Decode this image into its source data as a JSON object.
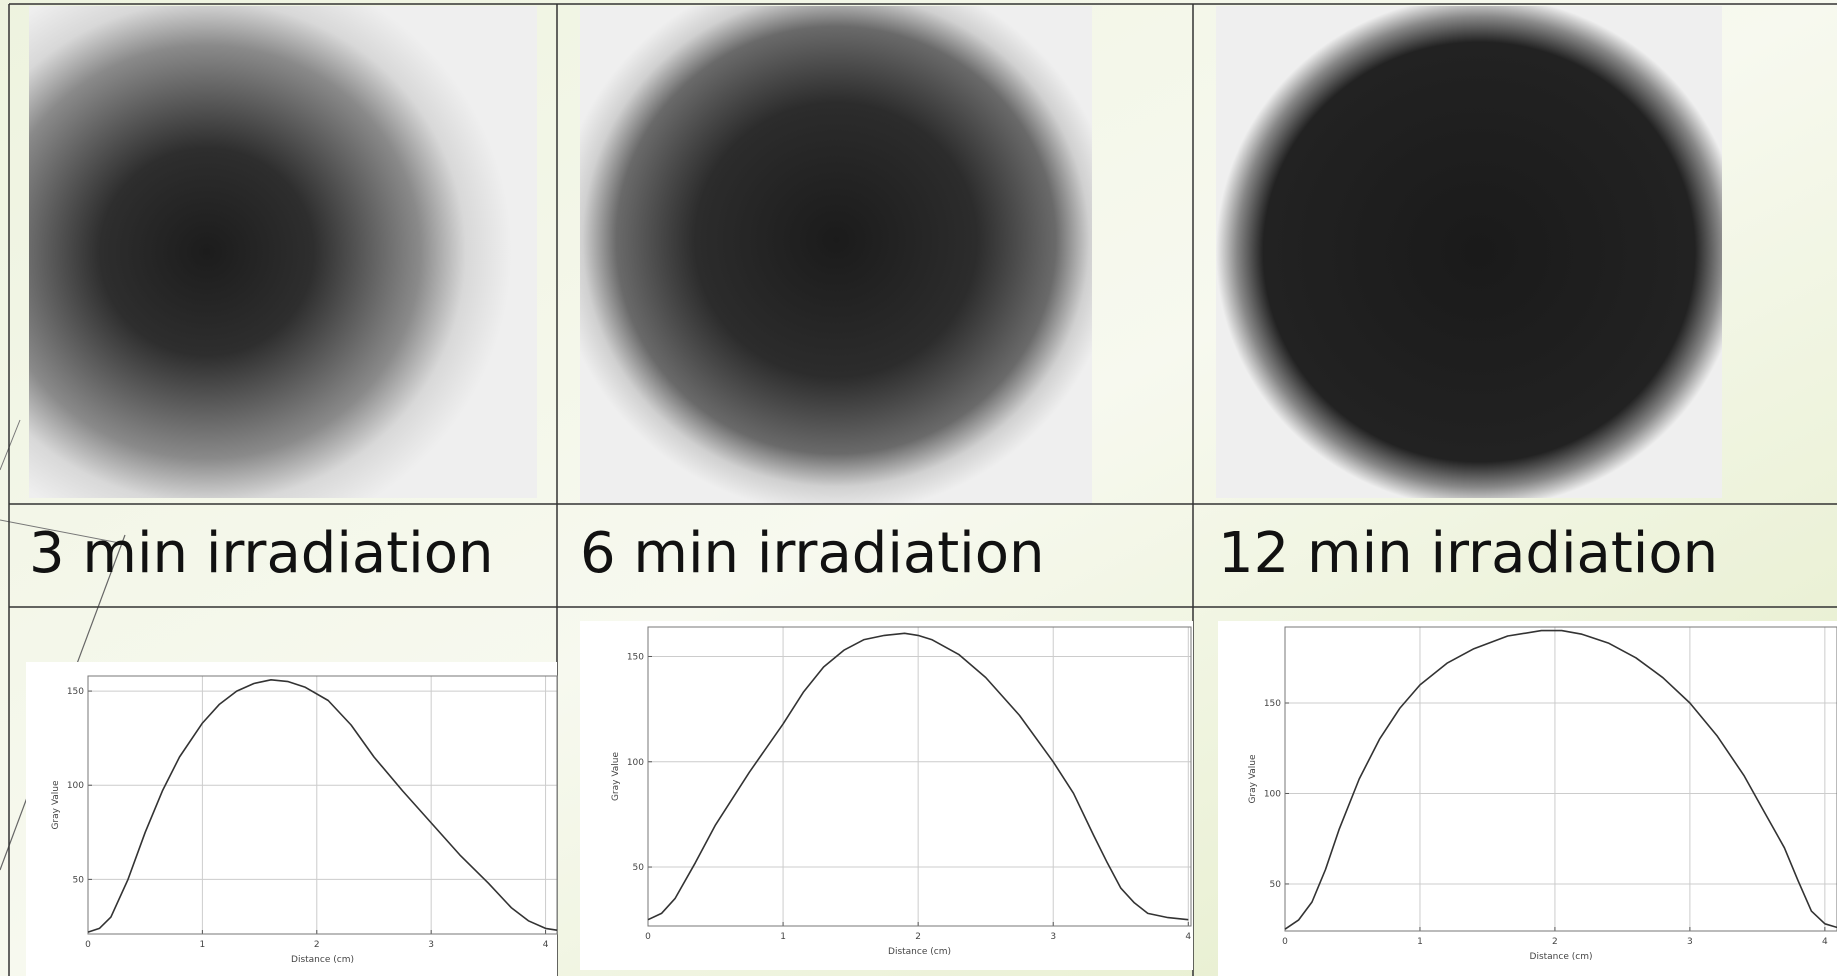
{
  "table": {
    "captions": [
      "3 min irradiation",
      "6 min irradiation",
      "12 min irradiation"
    ]
  },
  "chart_data": [
    {
      "type": "line",
      "xlabel": "Distance (cm)",
      "ylabel": "Gray Value",
      "color": "#333333",
      "grid": true,
      "x": [
        0,
        0.1,
        0.2,
        0.35,
        0.5,
        0.65,
        0.8,
        1.0,
        1.15,
        1.3,
        1.45,
        1.6,
        1.75,
        1.9,
        2.1,
        2.3,
        2.5,
        2.75,
        3.0,
        3.25,
        3.5,
        3.7,
        3.85,
        4.0,
        4.1
      ],
      "values": [
        22,
        24,
        30,
        50,
        75,
        97,
        115,
        133,
        143,
        150,
        154,
        156,
        155,
        152,
        145,
        132,
        115,
        97,
        80,
        63,
        48,
        35,
        28,
        24,
        23
      ],
      "xlim": [
        0,
        4.1
      ],
      "ylim": [
        21,
        158
      ],
      "xticks": [
        0,
        1,
        2,
        3,
        4
      ],
      "yticks": [
        50,
        100,
        150
      ]
    },
    {
      "type": "line",
      "xlabel": "Distance (cm)",
      "ylabel": "Gray Value",
      "color": "#333333",
      "grid": true,
      "x": [
        0,
        0.1,
        0.2,
        0.35,
        0.5,
        0.75,
        1.0,
        1.15,
        1.3,
        1.45,
        1.6,
        1.75,
        1.9,
        2.0,
        2.1,
        2.3,
        2.5,
        2.75,
        3.0,
        3.15,
        3.3,
        3.4,
        3.5,
        3.6,
        3.7,
        3.85,
        4.0
      ],
      "values": [
        25,
        28,
        35,
        52,
        70,
        95,
        118,
        133,
        145,
        153,
        158,
        160,
        161,
        160,
        158,
        151,
        140,
        122,
        100,
        85,
        65,
        52,
        40,
        33,
        28,
        26,
        25
      ],
      "xlim": [
        0,
        4.02
      ],
      "ylim": [
        22,
        164
      ],
      "xticks": [
        0,
        1,
        2,
        3,
        4
      ],
      "yticks": [
        50,
        100,
        150
      ]
    },
    {
      "type": "line",
      "xlabel": "Distance (cm)",
      "ylabel": "Gray Value",
      "color": "#333333",
      "grid": true,
      "x": [
        0,
        0.1,
        0.2,
        0.3,
        0.4,
        0.55,
        0.7,
        0.85,
        1.0,
        1.2,
        1.4,
        1.65,
        1.9,
        2.05,
        2.2,
        2.4,
        2.6,
        2.8,
        3.0,
        3.2,
        3.4,
        3.55,
        3.7,
        3.8,
        3.9,
        4.0,
        4.09
      ],
      "values": [
        25,
        30,
        40,
        58,
        80,
        108,
        130,
        147,
        160,
        172,
        180,
        187,
        190,
        190,
        188,
        183,
        175,
        164,
        150,
        132,
        110,
        90,
        70,
        52,
        35,
        28,
        26
      ],
      "xlim": [
        0,
        4.09
      ],
      "ylim": [
        24,
        192
      ],
      "xticks": [
        0,
        1,
        2,
        3,
        4
      ],
      "yticks": [
        50,
        100,
        150
      ]
    }
  ]
}
